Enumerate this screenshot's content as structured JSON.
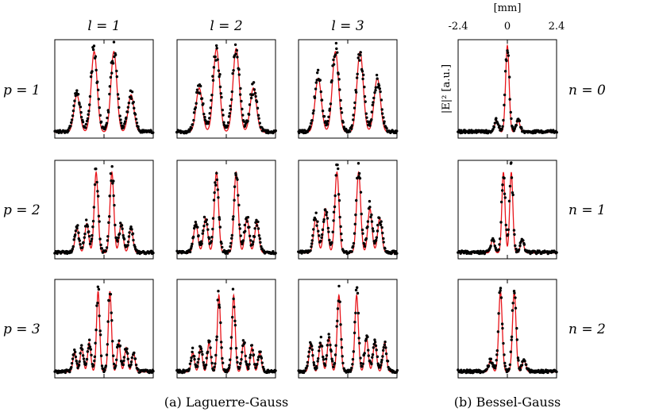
{
  "chart_data": {
    "type": "scatter",
    "description_caption": "Laguerre-Gauss and Bessel-Gauss intensity profiles, measured points vs. fitted curves",
    "colors": {
      "fit_curve": "#e8141a",
      "data_points": "#000000",
      "axes": "#000000"
    },
    "column_headers": [
      "l = 1",
      "l = 2",
      "l = 3"
    ],
    "row_labels_left": [
      "p = 1",
      "p = 2",
      "p = 3"
    ],
    "row_labels_right": [
      "n = 0",
      "n = 1",
      "n = 2"
    ],
    "bessel_axis": {
      "unit": "[mm]",
      "ticks": [
        "-2.4",
        "0",
        "2.4"
      ],
      "xlim": [
        -2.4,
        2.4
      ]
    },
    "ylabel": "|E|² [a.u.]",
    "captions": [
      "(a) Laguerre-Gauss",
      "(b) Bessel-Gauss"
    ],
    "panels": [
      {
        "name": "lg-p1-l1",
        "family": "LG",
        "p": 1,
        "l": 1,
        "peaks": [
          [
            -0.55,
            0.38
          ],
          [
            -0.2,
            0.82
          ],
          [
            0.2,
            0.82
          ],
          [
            0.55,
            0.38
          ]
        ],
        "width": 0.085
      },
      {
        "name": "lg-p1-l2",
        "family": "LG",
        "p": 1,
        "l": 2,
        "peaks": [
          [
            -0.55,
            0.45
          ],
          [
            -0.2,
            0.85
          ],
          [
            0.2,
            0.85
          ],
          [
            0.55,
            0.45
          ]
        ],
        "width": 0.09
      },
      {
        "name": "lg-p1-l3",
        "family": "LG",
        "p": 1,
        "l": 3,
        "peaks": [
          [
            -0.6,
            0.55
          ],
          [
            -0.25,
            0.82
          ],
          [
            0.25,
            0.82
          ],
          [
            0.6,
            0.55
          ]
        ],
        "width": 0.09
      },
      {
        "name": "lg-p2-l1",
        "family": "LG",
        "p": 2,
        "l": 1,
        "peaks": [
          [
            -0.55,
            0.25
          ],
          [
            -0.35,
            0.3
          ],
          [
            -0.16,
            0.82
          ],
          [
            0.16,
            0.82
          ],
          [
            0.35,
            0.3
          ],
          [
            0.55,
            0.25
          ]
        ],
        "width": 0.055
      },
      {
        "name": "lg-p2-l2",
        "family": "LG",
        "p": 2,
        "l": 2,
        "peaks": [
          [
            -0.62,
            0.3
          ],
          [
            -0.42,
            0.35
          ],
          [
            -0.2,
            0.82
          ],
          [
            0.2,
            0.82
          ],
          [
            0.42,
            0.35
          ],
          [
            0.62,
            0.3
          ]
        ],
        "width": 0.06
      },
      {
        "name": "lg-p2-l3",
        "family": "LG",
        "p": 2,
        "l": 3,
        "peaks": [
          [
            -0.65,
            0.35
          ],
          [
            -0.45,
            0.45
          ],
          [
            -0.22,
            0.82
          ],
          [
            0.22,
            0.82
          ],
          [
            0.45,
            0.45
          ],
          [
            0.65,
            0.35
          ]
        ],
        "width": 0.06
      },
      {
        "name": "lg-p3-l1",
        "family": "LG",
        "p": 3,
        "l": 1,
        "peaks": [
          [
            -0.6,
            0.2
          ],
          [
            -0.45,
            0.25
          ],
          [
            -0.3,
            0.3
          ],
          [
            -0.12,
            0.82
          ],
          [
            0.12,
            0.82
          ],
          [
            0.3,
            0.3
          ],
          [
            0.45,
            0.25
          ],
          [
            0.6,
            0.2
          ]
        ],
        "width": 0.045
      },
      {
        "name": "lg-p3-l2",
        "family": "LG",
        "p": 3,
        "l": 2,
        "peaks": [
          [
            -0.68,
            0.2
          ],
          [
            -0.52,
            0.25
          ],
          [
            -0.35,
            0.3
          ],
          [
            -0.15,
            0.78
          ],
          [
            0.15,
            0.78
          ],
          [
            0.35,
            0.3
          ],
          [
            0.52,
            0.25
          ],
          [
            0.68,
            0.2
          ]
        ],
        "width": 0.045
      },
      {
        "name": "lg-p3-l3",
        "family": "LG",
        "p": 3,
        "l": 3,
        "peaks": [
          [
            -0.75,
            0.3
          ],
          [
            -0.55,
            0.3
          ],
          [
            -0.38,
            0.35
          ],
          [
            -0.18,
            0.78
          ],
          [
            0.18,
            0.78
          ],
          [
            0.38,
            0.35
          ],
          [
            0.55,
            0.3
          ],
          [
            0.75,
            0.3
          ]
        ],
        "width": 0.05
      },
      {
        "name": "bg-n0",
        "family": "BG",
        "n": 0,
        "peaks": [
          [
            0,
            0.88
          ],
          [
            -0.22,
            0.12
          ],
          [
            0.22,
            0.12
          ]
        ],
        "width": 0.05
      },
      {
        "name": "bg-n1",
        "family": "BG",
        "n": 1,
        "peaks": [
          [
            -0.08,
            0.82
          ],
          [
            0.08,
            0.82
          ],
          [
            -0.3,
            0.14
          ],
          [
            0.3,
            0.14
          ]
        ],
        "width": 0.045
      },
      {
        "name": "bg-n2",
        "family": "BG",
        "n": 2,
        "peaks": [
          [
            -0.14,
            0.82
          ],
          [
            0.14,
            0.82
          ],
          [
            -0.34,
            0.12
          ],
          [
            0.34,
            0.12
          ]
        ],
        "width": 0.05
      }
    ]
  }
}
